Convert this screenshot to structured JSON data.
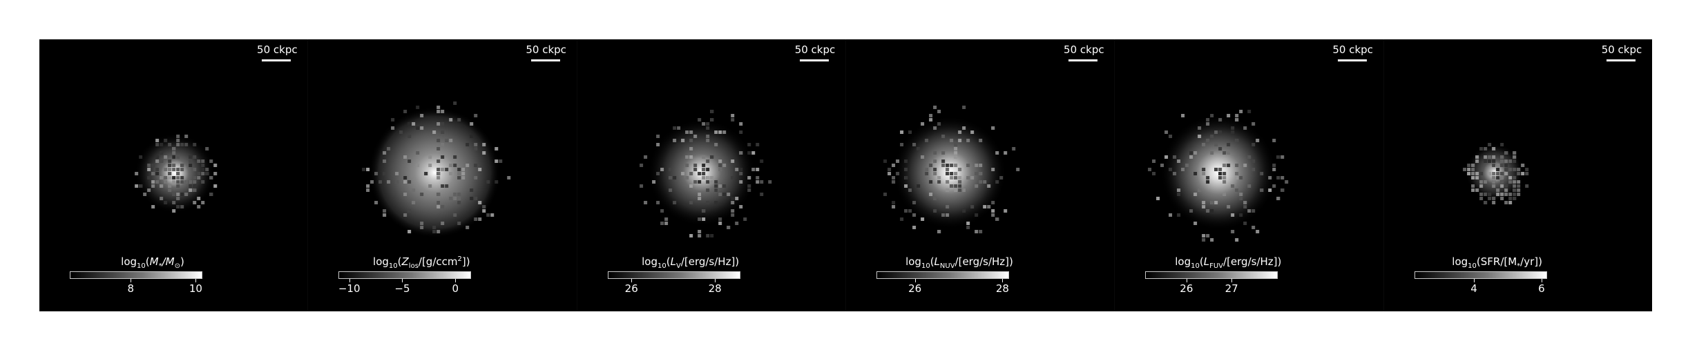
{
  "scale_bar_label": "50 ckpc",
  "panels": [
    {
      "id": "stellar-mass",
      "colorbar": {
        "prefix": "log",
        "sub": "10",
        "open": "(",
        "body": "M",
        "body_sub": "*",
        "mid": "/M",
        "mid_sub": "⊙",
        "close": ")",
        "sup": ""
      },
      "ticks": [
        {
          "label": "8",
          "frac": 0.46
        },
        {
          "label": "10",
          "frac": 0.95
        }
      ]
    },
    {
      "id": "metallicity",
      "colorbar": {
        "prefix": "log",
        "sub": "10",
        "open": "(",
        "body": "Z",
        "body_sub": "los",
        "mid": "/[g/ccm",
        "mid_sub": "",
        "close": "])",
        "sup": "2"
      },
      "ticks": [
        {
          "label": "−10",
          "frac": 0.08
        },
        {
          "label": "−5",
          "frac": 0.48
        },
        {
          "label": "0",
          "frac": 0.88
        }
      ]
    },
    {
      "id": "v-band",
      "colorbar": {
        "prefix": "log",
        "sub": "10",
        "open": "(",
        "body": "L",
        "body_sub": "V",
        "mid": "/[erg/s/Hz])",
        "mid_sub": "",
        "close": "",
        "sup": ""
      },
      "ticks": [
        {
          "label": "26",
          "frac": 0.18
        },
        {
          "label": "28",
          "frac": 0.81
        }
      ]
    },
    {
      "id": "nuv-band",
      "colorbar": {
        "prefix": "log",
        "sub": "10",
        "open": "(",
        "body": "L",
        "body_sub": "NUV",
        "mid": "/[erg/s/Hz])",
        "mid_sub": "",
        "close": "",
        "sup": ""
      },
      "ticks": [
        {
          "label": "26",
          "frac": 0.29
        },
        {
          "label": "28",
          "frac": 0.95
        }
      ]
    },
    {
      "id": "fuv-band",
      "colorbar": {
        "prefix": "log",
        "sub": "10",
        "open": "(",
        "body": "L",
        "body_sub": "FUV",
        "mid": "/[erg/s/Hz])",
        "mid_sub": "",
        "close": "",
        "sup": ""
      },
      "ticks": [
        {
          "label": "26",
          "frac": 0.31
        },
        {
          "label": "27",
          "frac": 0.65
        }
      ]
    },
    {
      "id": "sfr",
      "colorbar": {
        "prefix": "log",
        "sub": "10",
        "open": "(SFR/[M",
        "body": "",
        "body_sub": "*",
        "mid": "/yr])",
        "mid_sub": "",
        "close": "",
        "sup": ""
      },
      "ticks": [
        {
          "label": "4",
          "frac": 0.45
        },
        {
          "label": "6",
          "frac": 0.96
        }
      ]
    }
  ]
}
